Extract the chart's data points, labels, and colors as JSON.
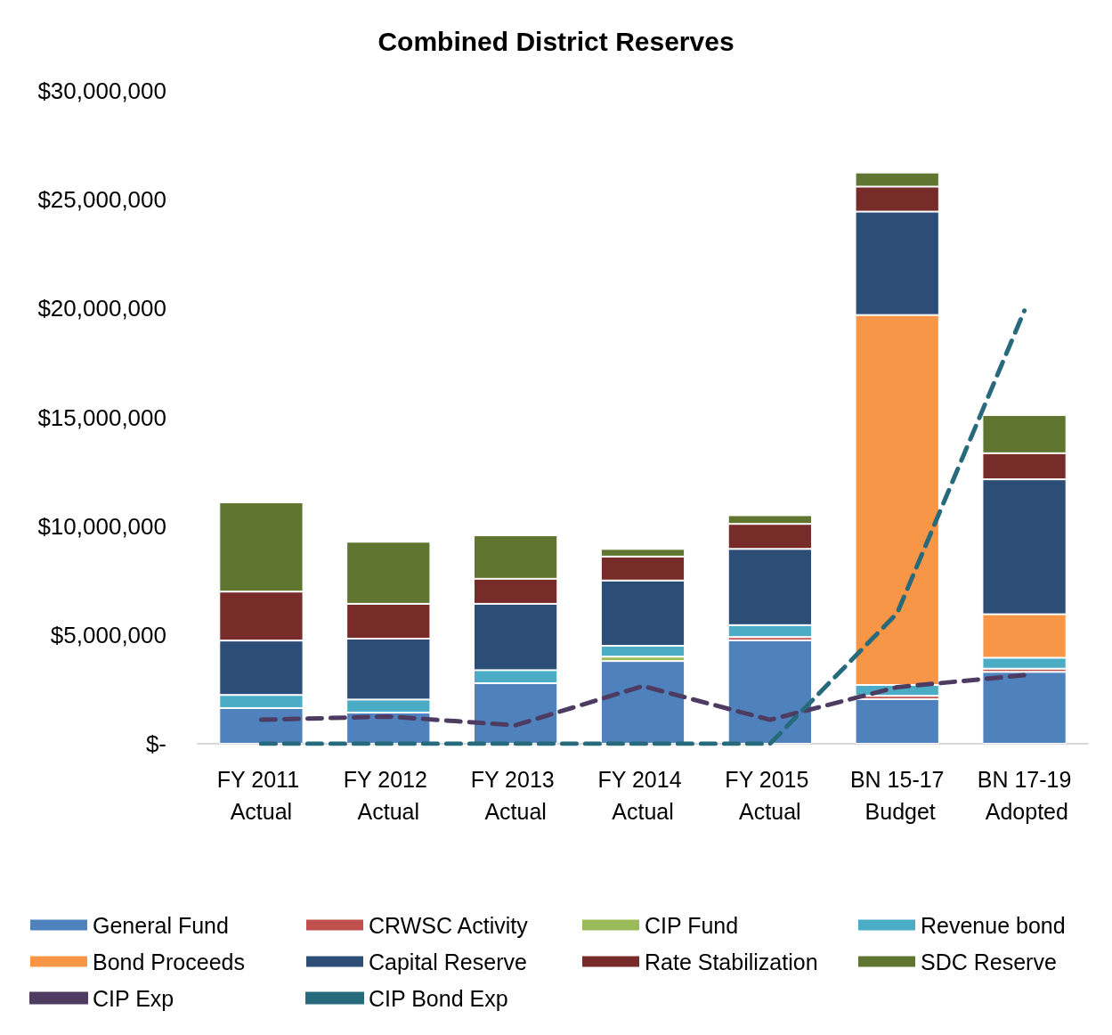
{
  "chart_data": {
    "type": "bar",
    "title": "Combined District Reserves",
    "stacked": true,
    "categories": [
      "FY 2011 Actual",
      "FY 2012 Actual",
      "FY 2013 Actual",
      "FY 2014 Actual",
      "FY 2015 Actual",
      "BN 15-17 Budget",
      "BN 17-19 Adopted"
    ],
    "series": [
      {
        "name": "General Fund",
        "color": "#4f81bd",
        "values": [
          1640000,
          1430000,
          2780000,
          3800000,
          4750000,
          2050000,
          3300000
        ]
      },
      {
        "name": "CRWSC Activity",
        "color": "#c0504d",
        "values": [
          0,
          0,
          0,
          0,
          150000,
          150000,
          150000
        ]
      },
      {
        "name": "CIP Fund",
        "color": "#9bbb59",
        "values": [
          0,
          0,
          0,
          200000,
          0,
          0,
          0
        ]
      },
      {
        "name": "Revenue bond",
        "color": "#4bacc6",
        "values": [
          600000,
          600000,
          600000,
          500000,
          550000,
          500000,
          500000
        ]
      },
      {
        "name": "Bond Proceeds",
        "color": "#f79646",
        "values": [
          0,
          0,
          0,
          0,
          0,
          17000000,
          2000000
        ]
      },
      {
        "name": "Capital Reserve",
        "color": "#2c4d75",
        "values": [
          2500000,
          2800000,
          3050000,
          3000000,
          3500000,
          4750000,
          6200000
        ]
      },
      {
        "name": "Rate Stabilization",
        "color": "#772c2a",
        "values": [
          2250000,
          1600000,
          1150000,
          1100000,
          1150000,
          1150000,
          1200000
        ]
      },
      {
        "name": "SDC Reserve",
        "color": "#5f7530",
        "values": [
          4100000,
          2850000,
          2000000,
          350000,
          400000,
          650000,
          1750000
        ]
      },
      {
        "name": "CIP Exp",
        "type": "line",
        "color": "#4d3b62",
        "line_style": "dashed",
        "values": [
          1100000,
          1250000,
          850000,
          2650000,
          1100000,
          2600000,
          3150000
        ]
      },
      {
        "name": "CIP Bond Exp",
        "type": "line",
        "color": "#276a7c",
        "line_style": "dashed",
        "values": [
          0,
          0,
          0,
          0,
          0,
          6000000,
          19900000
        ]
      }
    ],
    "ylim": [
      0,
      30000000
    ],
    "yticks": [
      {
        "value": 0,
        "label": "$-"
      },
      {
        "value": 5000000,
        "label": "$5,000,000"
      },
      {
        "value": 10000000,
        "label": "$10,000,000"
      },
      {
        "value": 15000000,
        "label": "$15,000,000"
      },
      {
        "value": 20000000,
        "label": "$20,000,000"
      },
      {
        "value": 25000000,
        "label": "$25,000,000"
      },
      {
        "value": 30000000,
        "label": "$30,000,000"
      }
    ],
    "grid": false,
    "legend": "bottom",
    "marker": "none"
  }
}
